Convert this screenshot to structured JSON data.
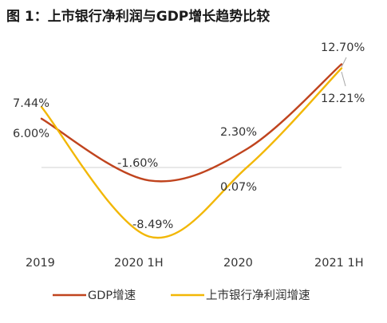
{
  "chart_data": {
    "type": "line",
    "title": "图 1：上市银行净利润与GDP增长趋势比较",
    "categories": [
      "2019",
      "2020 1H",
      "2020",
      "2021 1H"
    ],
    "series": [
      {
        "name": "GDP增速",
        "values": [
          6.0,
          -1.6,
          2.3,
          12.7
        ],
        "labels": [
          "6.00%",
          "-1.60%",
          "2.30%",
          "12.70%"
        ]
      },
      {
        "name": "上市银行净利润增速",
        "values": [
          7.44,
          -8.49,
          0.07,
          12.21
        ],
        "labels": [
          "7.44%",
          "-8.49%",
          "0.07%",
          "12.21%"
        ]
      }
    ],
    "ylim": [
      -11,
      15
    ],
    "zero_line": true,
    "legend_position": "bottom",
    "xlabel": "",
    "ylabel": ""
  },
  "colors": {
    "gdp": "#C0441E",
    "bank": "#F2B705",
    "zero_line": "#d0d0d0",
    "leader_line": "#a6a6a6"
  }
}
